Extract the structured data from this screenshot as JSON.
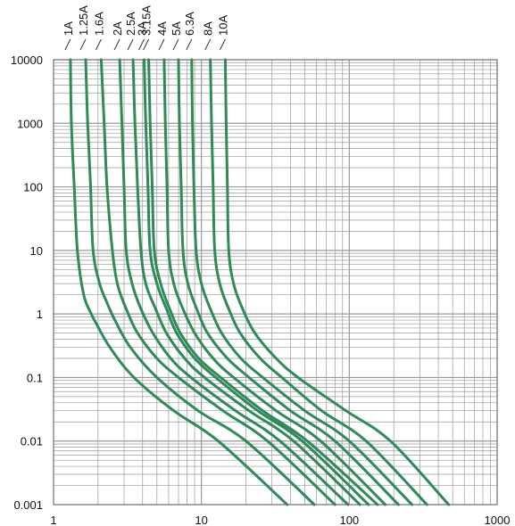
{
  "chart_data": {
    "type": "line",
    "title": "",
    "xlabel": "",
    "ylabel": "",
    "x_scale": "log",
    "y_scale": "log",
    "xlim": [
      1,
      1000
    ],
    "ylim": [
      0.001,
      10000
    ],
    "grid": true,
    "x_ticks": [
      {
        "value": 1,
        "label": "1"
      },
      {
        "value": 10,
        "label": "10"
      },
      {
        "value": 100,
        "label": "100"
      },
      {
        "value": 1000,
        "label": "1000"
      }
    ],
    "y_ticks": [
      {
        "value": 10000,
        "label": "10000"
      },
      {
        "value": 1000,
        "label": "1000"
      },
      {
        "value": 100,
        "label": "100"
      },
      {
        "value": 10,
        "label": "10"
      },
      {
        "value": 1,
        "label": "1"
      },
      {
        "value": 0.1,
        "label": "0.1"
      },
      {
        "value": 0.01,
        "label": "0.01"
      },
      {
        "value": 0.001,
        "label": "0.001"
      }
    ],
    "line_color": "#2e8a57",
    "grid_color": "#9a9a9a",
    "series": [
      {
        "name": "1A",
        "points": [
          [
            1.3,
            10000
          ],
          [
            1.32,
            1000
          ],
          [
            1.38,
            100
          ],
          [
            1.45,
            10
          ],
          [
            1.6,
            2
          ],
          [
            1.8,
            1
          ],
          [
            1.95,
            0.7
          ],
          [
            2.4,
            0.3
          ],
          [
            3.5,
            0.1
          ],
          [
            6.5,
            0.03
          ],
          [
            13,
            0.01
          ],
          [
            38,
            0.001
          ]
        ]
      },
      {
        "name": "1.25A",
        "points": [
          [
            1.65,
            10000
          ],
          [
            1.7,
            1000
          ],
          [
            1.78,
            100
          ],
          [
            1.85,
            10
          ],
          [
            2.05,
            3
          ],
          [
            2.3,
            1.5
          ],
          [
            2.6,
            0.8
          ],
          [
            3.3,
            0.3
          ],
          [
            5,
            0.1
          ],
          [
            9.5,
            0.03
          ],
          [
            20,
            0.01
          ],
          [
            58,
            0.001
          ]
        ]
      },
      {
        "name": "1.6A",
        "points": [
          [
            2.1,
            10000
          ],
          [
            2.2,
            1000
          ],
          [
            2.3,
            100
          ],
          [
            2.5,
            10
          ],
          [
            2.7,
            3
          ],
          [
            3.1,
            1.2
          ],
          [
            3.7,
            0.5
          ],
          [
            5,
            0.2
          ],
          [
            7,
            0.1
          ],
          [
            14,
            0.03
          ],
          [
            28,
            0.01
          ],
          [
            80,
            0.001
          ]
        ]
      },
      {
        "name": "2A",
        "points": [
          [
            2.8,
            10000
          ],
          [
            2.9,
            1000
          ],
          [
            3.0,
            100
          ],
          [
            3.1,
            10
          ],
          [
            3.4,
            3
          ],
          [
            3.9,
            1.2
          ],
          [
            4.7,
            0.5
          ],
          [
            6.2,
            0.2
          ],
          [
            8.5,
            0.1
          ],
          [
            17,
            0.03
          ],
          [
            34,
            0.01
          ],
          [
            98,
            0.001
          ]
        ]
      },
      {
        "name": "2.5A",
        "points": [
          [
            3.45,
            10000
          ],
          [
            3.55,
            1000
          ],
          [
            3.7,
            100
          ],
          [
            3.9,
            10
          ],
          [
            4.2,
            3
          ],
          [
            4.9,
            1.2
          ],
          [
            5.8,
            0.5
          ],
          [
            7.7,
            0.2
          ],
          [
            10.5,
            0.1
          ],
          [
            21,
            0.03
          ],
          [
            42,
            0.01
          ],
          [
            118,
            0.001
          ]
        ]
      },
      {
        "name": "3A",
        "points": [
          [
            4.1,
            10000
          ],
          [
            4.2,
            1000
          ],
          [
            4.35,
            100
          ],
          [
            4.5,
            10
          ],
          [
            5,
            3
          ],
          [
            5.8,
            1.2
          ],
          [
            6.8,
            0.5
          ],
          [
            9,
            0.2
          ],
          [
            12.5,
            0.1
          ],
          [
            24,
            0.03
          ],
          [
            48,
            0.01
          ],
          [
            135,
            0.001
          ]
        ]
      },
      {
        "name": "3.15A",
        "points": [
          [
            4.4,
            10000
          ],
          [
            4.5,
            1000
          ],
          [
            4.65,
            100
          ],
          [
            4.8,
            10
          ],
          [
            5.3,
            3
          ],
          [
            6.1,
            1.2
          ],
          [
            7.2,
            0.5
          ],
          [
            9.6,
            0.2
          ],
          [
            13.5,
            0.1
          ],
          [
            26,
            0.03
          ],
          [
            52,
            0.01
          ],
          [
            155,
            0.001
          ]
        ]
      },
      {
        "name": "4A",
        "points": [
          [
            5.6,
            10000
          ],
          [
            5.7,
            1000
          ],
          [
            5.85,
            100
          ],
          [
            6,
            10
          ],
          [
            6.5,
            3
          ],
          [
            7.5,
            1.2
          ],
          [
            9,
            0.5
          ],
          [
            12,
            0.2
          ],
          [
            16.5,
            0.1
          ],
          [
            32,
            0.03
          ],
          [
            64,
            0.01
          ],
          [
            175,
            0.001
          ]
        ]
      },
      {
        "name": "5A",
        "points": [
          [
            7.0,
            10000
          ],
          [
            7.1,
            1000
          ],
          [
            7.3,
            100
          ],
          [
            7.5,
            10
          ],
          [
            8.1,
            3
          ],
          [
            9.3,
            1.2
          ],
          [
            11,
            0.5
          ],
          [
            15,
            0.2
          ],
          [
            21,
            0.1
          ],
          [
            40,
            0.03
          ],
          [
            80,
            0.01
          ],
          [
            215,
            0.001
          ]
        ]
      },
      {
        "name": "6.3A",
        "points": [
          [
            8.6,
            10000
          ],
          [
            8.7,
            1000
          ],
          [
            8.9,
            100
          ],
          [
            9.2,
            10
          ],
          [
            10,
            3
          ],
          [
            11.5,
            1.2
          ],
          [
            13.7,
            0.5
          ],
          [
            18.5,
            0.2
          ],
          [
            26,
            0.1
          ],
          [
            50,
            0.03
          ],
          [
            100,
            0.01
          ],
          [
            265,
            0.001
          ]
        ]
      },
      {
        "name": "8A",
        "points": [
          [
            11.5,
            10000
          ],
          [
            11.7,
            1000
          ],
          [
            12,
            100
          ],
          [
            12.3,
            10
          ],
          [
            13.3,
            3
          ],
          [
            15.3,
            1.2
          ],
          [
            18.3,
            0.5
          ],
          [
            25,
            0.2
          ],
          [
            35,
            0.1
          ],
          [
            65,
            0.03
          ],
          [
            130,
            0.01
          ],
          [
            335,
            0.001
          ]
        ]
      },
      {
        "name": "10A",
        "points": [
          [
            14.5,
            10000
          ],
          [
            14.7,
            1000
          ],
          [
            15,
            100
          ],
          [
            15.3,
            10
          ],
          [
            16.5,
            3
          ],
          [
            19,
            1.2
          ],
          [
            23,
            0.5
          ],
          [
            32,
            0.2
          ],
          [
            45,
            0.1
          ],
          [
            95,
            0.03
          ],
          [
            190,
            0.01
          ],
          [
            470,
            0.001
          ]
        ]
      }
    ]
  }
}
